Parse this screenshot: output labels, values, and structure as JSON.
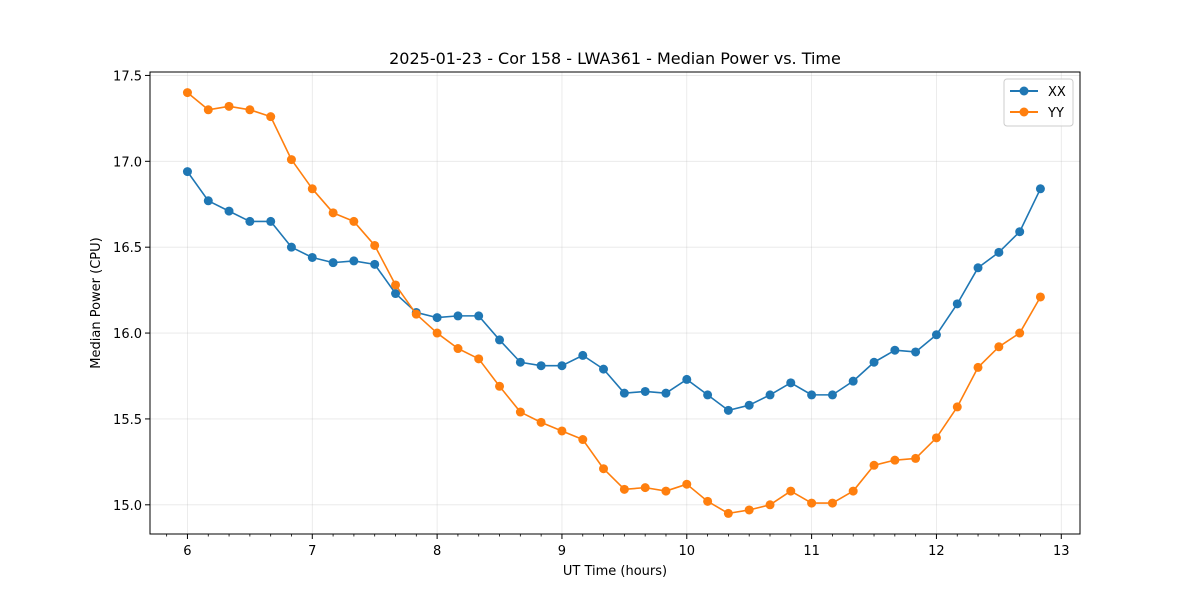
{
  "chart_data": {
    "type": "line",
    "title": "2025-01-23 - Cor 158 - LWA361 - Median Power vs. Time",
    "xlabel": "UT Time (hours)",
    "ylabel": "Median Power (CPU)",
    "xlim": [
      5.7,
      13.15
    ],
    "ylim": [
      14.83,
      17.52
    ],
    "xticks": [
      6,
      7,
      8,
      9,
      10,
      11,
      12,
      13
    ],
    "yticks": [
      15.0,
      15.5,
      16.0,
      16.5,
      17.0,
      17.5
    ],
    "ytick_labels": [
      "15.0",
      "15.5",
      "16.0",
      "16.5",
      "17.0",
      "17.5"
    ],
    "grid": true,
    "legend_position": "top-right",
    "x": [
      6.0,
      6.167,
      6.333,
      6.5,
      6.667,
      6.833,
      7.0,
      7.167,
      7.333,
      7.5,
      7.667,
      7.833,
      8.0,
      8.167,
      8.333,
      8.5,
      8.667,
      8.833,
      9.0,
      9.167,
      9.333,
      9.5,
      9.667,
      9.833,
      10.0,
      10.167,
      10.333,
      10.5,
      10.667,
      10.833,
      11.0,
      11.167,
      11.333,
      11.5,
      11.667,
      11.833,
      12.0,
      12.167,
      12.333,
      12.5,
      12.667,
      12.833
    ],
    "series": [
      {
        "name": "XX",
        "color": "#1f77b4",
        "values": [
          16.94,
          16.77,
          16.71,
          16.65,
          16.65,
          16.5,
          16.44,
          16.41,
          16.42,
          16.4,
          16.23,
          16.12,
          16.09,
          16.1,
          16.1,
          15.96,
          15.83,
          15.81,
          15.81,
          15.87,
          15.79,
          15.65,
          15.66,
          15.65,
          15.73,
          15.64,
          15.55,
          15.58,
          15.64,
          15.71,
          15.64,
          15.64,
          15.72,
          15.83,
          15.9,
          15.89,
          15.99,
          16.17,
          16.38,
          16.47,
          16.59,
          16.84
        ]
      },
      {
        "name": "YY",
        "color": "#ff7f0e",
        "values": [
          17.4,
          17.3,
          17.32,
          17.3,
          17.26,
          17.01,
          16.84,
          16.7,
          16.65,
          16.51,
          16.28,
          16.11,
          16.0,
          15.91,
          15.85,
          15.69,
          15.54,
          15.48,
          15.43,
          15.38,
          15.21,
          15.09,
          15.1,
          15.08,
          15.12,
          15.02,
          14.95,
          14.97,
          15.0,
          15.08,
          15.01,
          15.01,
          15.08,
          15.23,
          15.26,
          15.27,
          15.39,
          15.57,
          15.8,
          15.92,
          16.0,
          16.21
        ]
      }
    ]
  }
}
